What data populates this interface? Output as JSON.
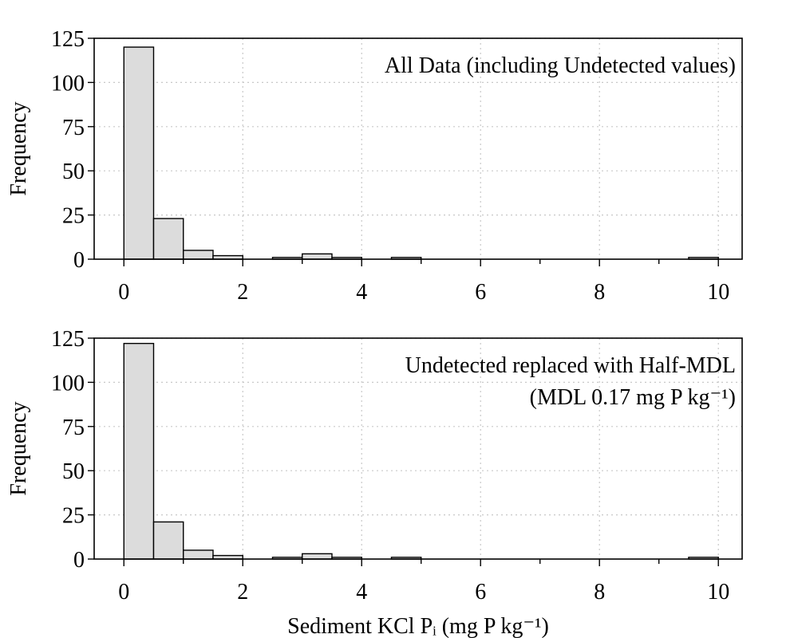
{
  "chart_data": [
    {
      "type": "bar",
      "annotation": [
        "All Data (including Undetected values)"
      ],
      "ylabel": "Frequency",
      "xlabel": "",
      "xlim": [
        -0.5,
        10.4
      ],
      "ylim": [
        0,
        125
      ],
      "bin_width": 0.5,
      "x_ticks": [
        0,
        2,
        4,
        6,
        8,
        10
      ],
      "y_ticks": [
        0,
        25,
        50,
        75,
        100,
        125
      ],
      "grid": true,
      "bins": [
        {
          "start": 0.0,
          "end": 0.5,
          "count": 120
        },
        {
          "start": 0.5,
          "end": 1.0,
          "count": 23
        },
        {
          "start": 1.0,
          "end": 1.5,
          "count": 5
        },
        {
          "start": 1.5,
          "end": 2.0,
          "count": 2
        },
        {
          "start": 2.0,
          "end": 2.5,
          "count": 0
        },
        {
          "start": 2.5,
          "end": 3.0,
          "count": 1
        },
        {
          "start": 3.0,
          "end": 3.5,
          "count": 3
        },
        {
          "start": 3.5,
          "end": 4.0,
          "count": 1
        },
        {
          "start": 4.0,
          "end": 4.5,
          "count": 0
        },
        {
          "start": 4.5,
          "end": 5.0,
          "count": 1
        },
        {
          "start": 5.0,
          "end": 5.5,
          "count": 0
        },
        {
          "start": 5.5,
          "end": 6.0,
          "count": 0
        },
        {
          "start": 6.0,
          "end": 6.5,
          "count": 0
        },
        {
          "start": 6.5,
          "end": 7.0,
          "count": 0
        },
        {
          "start": 7.0,
          "end": 7.5,
          "count": 0
        },
        {
          "start": 7.5,
          "end": 8.0,
          "count": 0
        },
        {
          "start": 8.0,
          "end": 8.5,
          "count": 0
        },
        {
          "start": 8.5,
          "end": 9.0,
          "count": 0
        },
        {
          "start": 9.0,
          "end": 9.5,
          "count": 0
        },
        {
          "start": 9.5,
          "end": 10.0,
          "count": 1
        }
      ]
    },
    {
      "type": "bar",
      "annotation": [
        "Undetected replaced with Half-MDL",
        "(MDL 0.17 mg P kg⁻¹)"
      ],
      "ylabel": "Frequency",
      "xlabel": "Sediment KCl Pᵢ (mg P kg⁻¹)",
      "xlim": [
        -0.5,
        10.4
      ],
      "ylim": [
        0,
        125
      ],
      "bin_width": 0.5,
      "x_ticks": [
        0,
        2,
        4,
        6,
        8,
        10
      ],
      "y_ticks": [
        0,
        25,
        50,
        75,
        100,
        125
      ],
      "grid": true,
      "bins": [
        {
          "start": 0.0,
          "end": 0.5,
          "count": 122
        },
        {
          "start": 0.5,
          "end": 1.0,
          "count": 21
        },
        {
          "start": 1.0,
          "end": 1.5,
          "count": 5
        },
        {
          "start": 1.5,
          "end": 2.0,
          "count": 2
        },
        {
          "start": 2.0,
          "end": 2.5,
          "count": 0
        },
        {
          "start": 2.5,
          "end": 3.0,
          "count": 1
        },
        {
          "start": 3.0,
          "end": 3.5,
          "count": 3
        },
        {
          "start": 3.5,
          "end": 4.0,
          "count": 1
        },
        {
          "start": 4.0,
          "end": 4.5,
          "count": 0
        },
        {
          "start": 4.5,
          "end": 5.0,
          "count": 1
        },
        {
          "start": 5.0,
          "end": 5.5,
          "count": 0
        },
        {
          "start": 5.5,
          "end": 6.0,
          "count": 0
        },
        {
          "start": 6.0,
          "end": 6.5,
          "count": 0
        },
        {
          "start": 6.5,
          "end": 7.0,
          "count": 0
        },
        {
          "start": 7.0,
          "end": 7.5,
          "count": 0
        },
        {
          "start": 7.5,
          "end": 8.0,
          "count": 0
        },
        {
          "start": 8.0,
          "end": 8.5,
          "count": 0
        },
        {
          "start": 8.5,
          "end": 9.0,
          "count": 0
        },
        {
          "start": 9.0,
          "end": 9.5,
          "count": 0
        },
        {
          "start": 9.5,
          "end": 10.0,
          "count": 1
        }
      ]
    }
  ],
  "colors": {
    "bar_fill": "#dcdcdc",
    "bar_stroke": "#000000",
    "grid": "#c8c8c8"
  }
}
